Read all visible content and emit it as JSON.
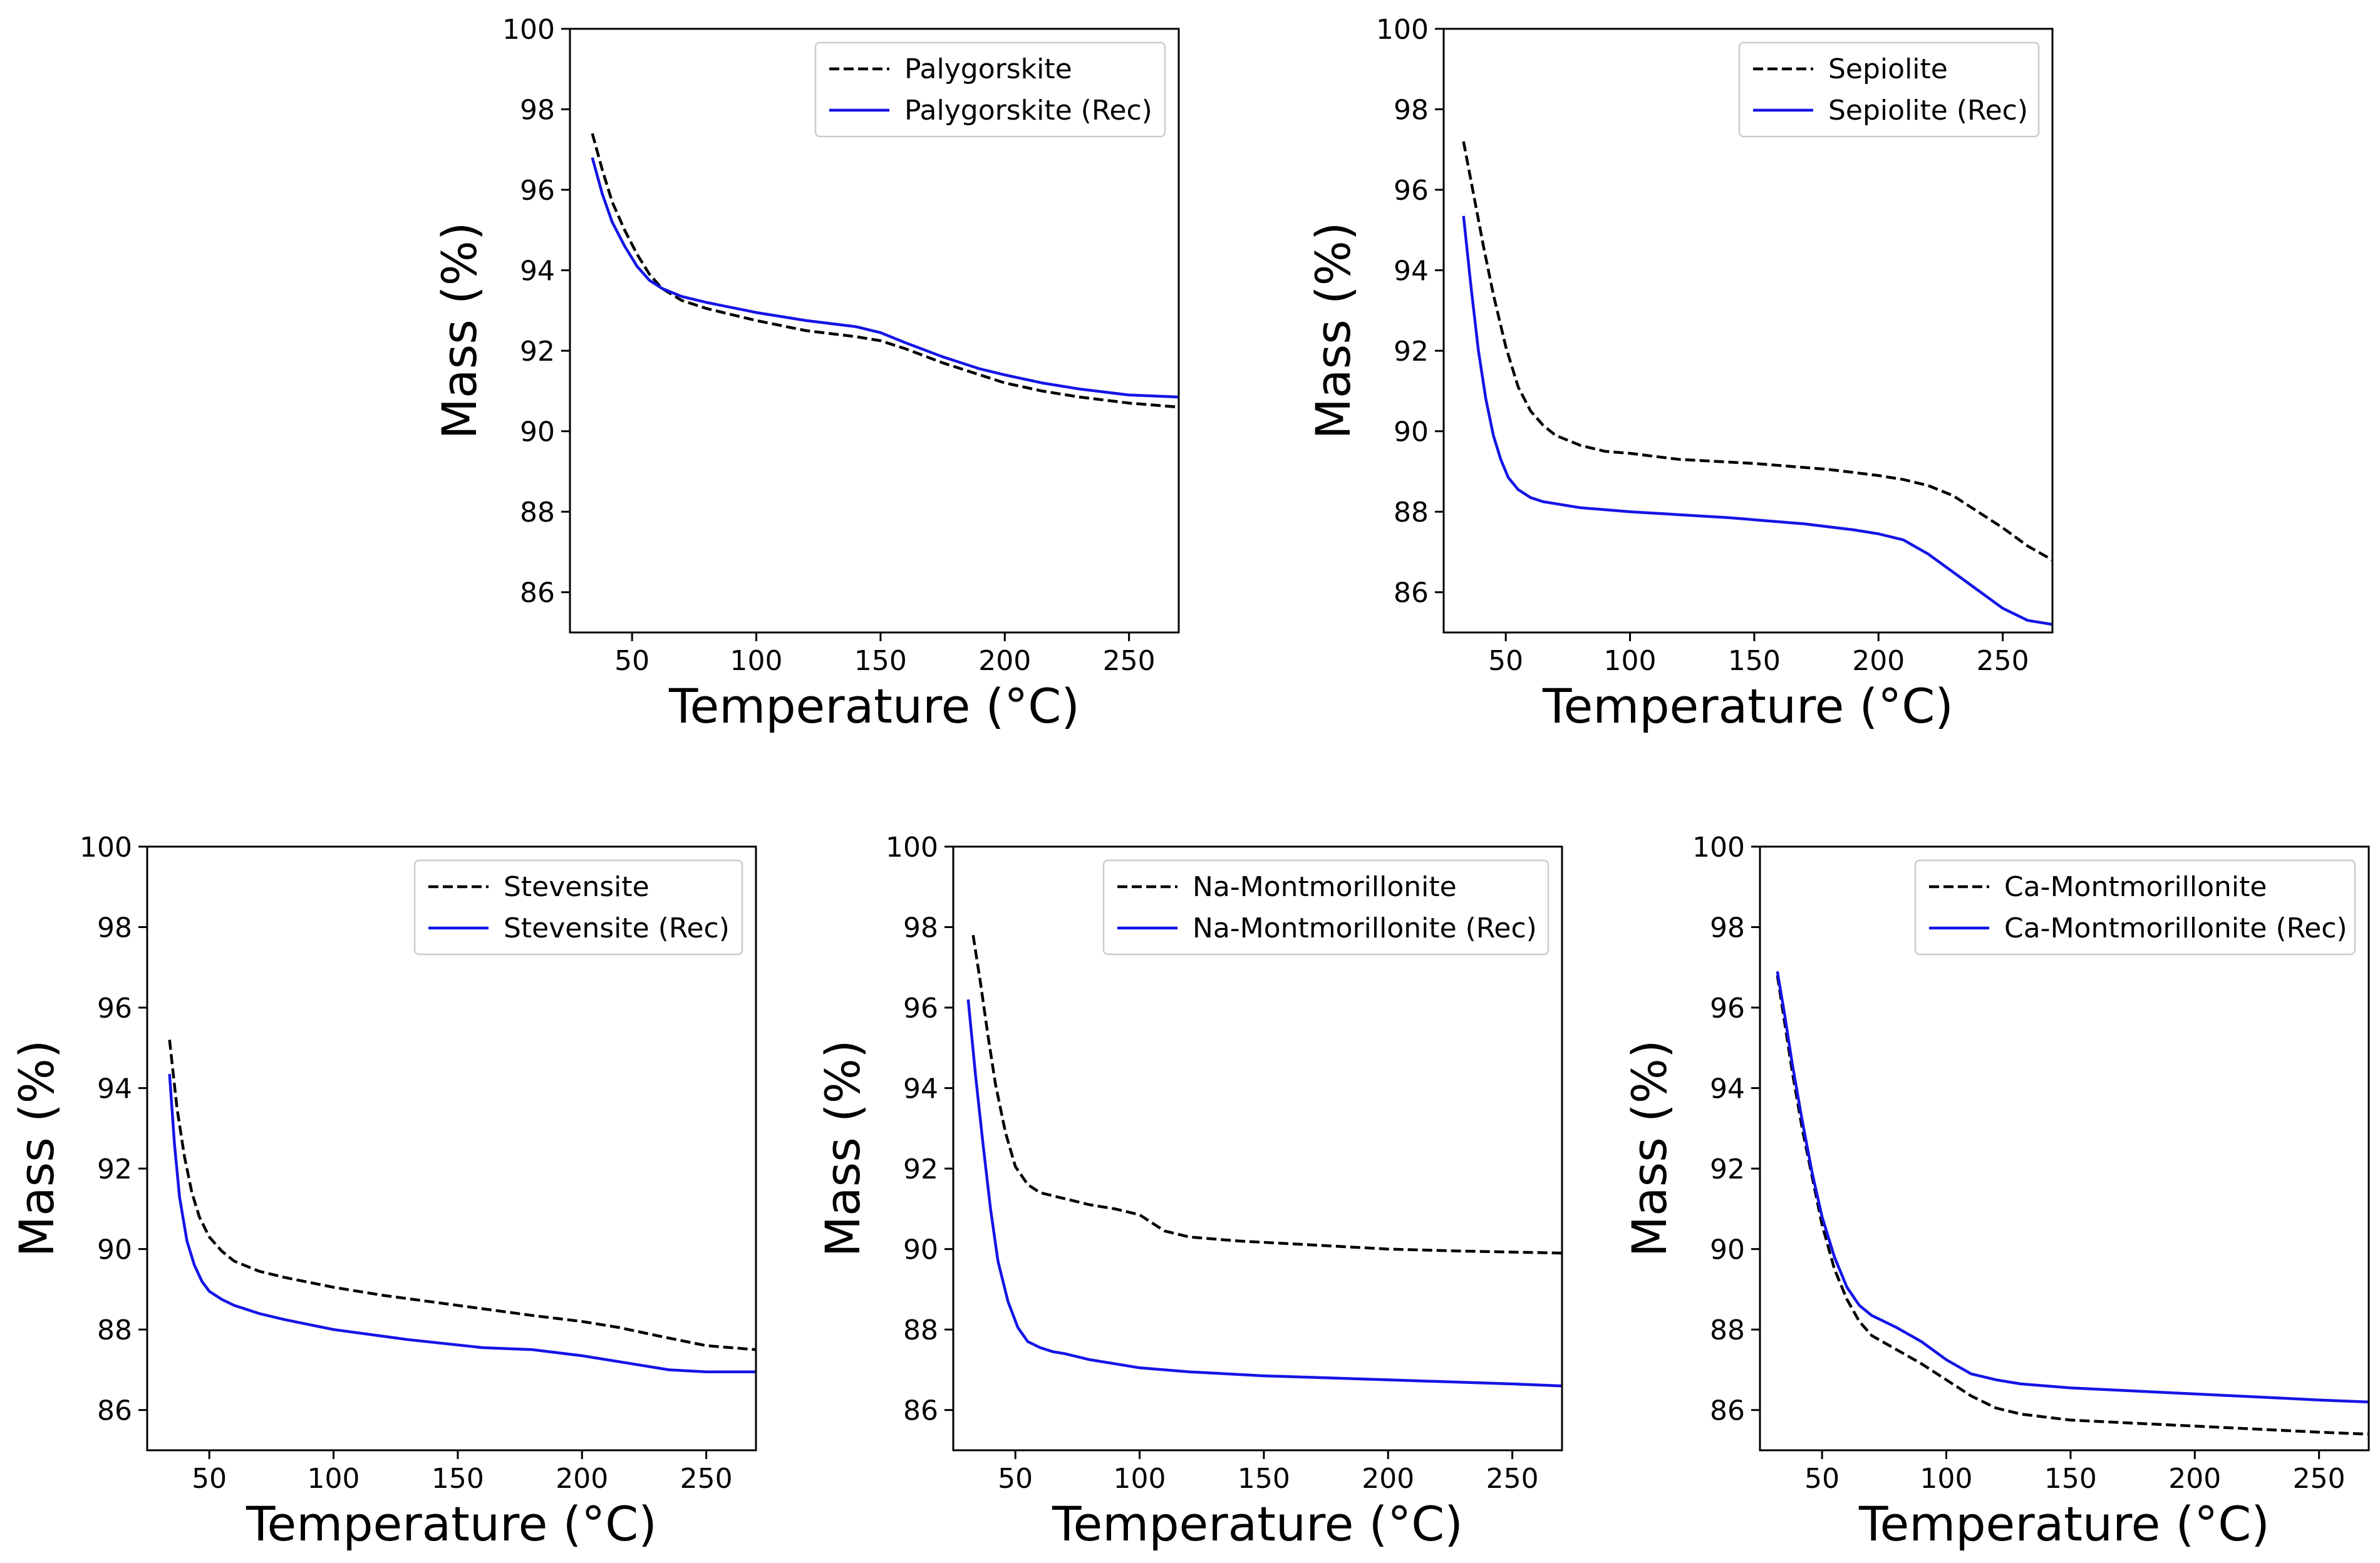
{
  "chart_data": [
    {
      "type": "line",
      "xlabel": "Temperature (°C)",
      "ylabel": "Mass (%)",
      "xlim": [
        25,
        270
      ],
      "ylim": [
        85,
        100
      ],
      "xticks": [
        50,
        100,
        150,
        200,
        250
      ],
      "yticks": [
        86,
        88,
        90,
        92,
        94,
        96,
        98,
        100
      ],
      "grid": false,
      "legend": "top-right",
      "series": [
        {
          "name": "Palygorskite",
          "style": "dashed",
          "color": "#000000",
          "x": [
            34,
            38,
            42,
            47,
            52,
            57,
            62,
            70,
            80,
            100,
            120,
            140,
            150,
            160,
            175,
            190,
            200,
            215,
            230,
            250,
            270
          ],
          "y": [
            97.4,
            96.5,
            95.7,
            95.0,
            94.4,
            93.9,
            93.55,
            93.25,
            93.05,
            92.75,
            92.5,
            92.35,
            92.25,
            92.05,
            91.7,
            91.4,
            91.2,
            91.0,
            90.85,
            90.7,
            90.6
          ]
        },
        {
          "name": "Palygorskite (Rec)",
          "style": "solid",
          "color": "#1414e6",
          "x": [
            34,
            38,
            42,
            47,
            52,
            57,
            62,
            70,
            80,
            100,
            120,
            140,
            150,
            160,
            175,
            190,
            200,
            215,
            230,
            250,
            270
          ],
          "y": [
            96.8,
            95.9,
            95.2,
            94.6,
            94.1,
            93.75,
            93.55,
            93.35,
            93.2,
            92.95,
            92.75,
            92.6,
            92.45,
            92.2,
            91.85,
            91.55,
            91.4,
            91.2,
            91.05,
            90.9,
            90.85
          ]
        }
      ]
    },
    {
      "type": "line",
      "xlabel": "Temperature (°C)",
      "ylabel": "Mass (%)",
      "xlim": [
        25,
        270
      ],
      "ylim": [
        85,
        100
      ],
      "xticks": [
        50,
        100,
        150,
        200,
        250
      ],
      "yticks": [
        86,
        88,
        90,
        92,
        94,
        96,
        98,
        100
      ],
      "grid": false,
      "legend": "top-right",
      "series": [
        {
          "name": "Sepiolite",
          "style": "dashed",
          "color": "#000000",
          "x": [
            33,
            37,
            41,
            45,
            50,
            55,
            60,
            65,
            70,
            80,
            90,
            100,
            120,
            150,
            180,
            200,
            210,
            220,
            230,
            240,
            250,
            260,
            270
          ],
          "y": [
            97.2,
            95.9,
            94.6,
            93.4,
            92.1,
            91.1,
            90.5,
            90.15,
            89.9,
            89.65,
            89.5,
            89.45,
            89.3,
            89.2,
            89.05,
            88.9,
            88.8,
            88.65,
            88.4,
            88.0,
            87.6,
            87.15,
            86.8
          ]
        },
        {
          "name": "Sepiolite (Rec)",
          "style": "solid",
          "color": "#1414e6",
          "x": [
            33,
            36,
            39,
            42,
            45,
            48,
            51,
            55,
            60,
            65,
            70,
            80,
            100,
            140,
            170,
            190,
            200,
            210,
            220,
            230,
            240,
            250,
            260,
            270
          ],
          "y": [
            95.35,
            93.6,
            92.0,
            90.8,
            89.9,
            89.3,
            88.85,
            88.55,
            88.35,
            88.25,
            88.2,
            88.1,
            88.0,
            87.85,
            87.7,
            87.55,
            87.45,
            87.3,
            86.95,
            86.5,
            86.05,
            85.6,
            85.3,
            85.2
          ]
        }
      ]
    },
    {
      "type": "line",
      "xlabel": "Temperature (°C)",
      "ylabel": "Mass (%)",
      "xlim": [
        25,
        270
      ],
      "ylim": [
        85,
        100
      ],
      "xticks": [
        50,
        100,
        150,
        200,
        250
      ],
      "yticks": [
        86,
        88,
        90,
        92,
        94,
        96,
        98,
        100
      ],
      "grid": false,
      "legend": "top-right",
      "series": [
        {
          "name": "Stevensite",
          "style": "dashed",
          "color": "#000000",
          "x": [
            34,
            37,
            40,
            43,
            46,
            50,
            55,
            60,
            70,
            80,
            100,
            120,
            150,
            180,
            200,
            215,
            230,
            250,
            270
          ],
          "y": [
            95.2,
            93.5,
            92.3,
            91.4,
            90.8,
            90.3,
            89.95,
            89.7,
            89.45,
            89.3,
            89.05,
            88.85,
            88.6,
            88.35,
            88.2,
            88.05,
            87.85,
            87.6,
            87.5
          ]
        },
        {
          "name": "Stevensite (Rec)",
          "style": "solid",
          "color": "#1414e6",
          "x": [
            34,
            36,
            38,
            41,
            44,
            47,
            50,
            55,
            60,
            70,
            80,
            100,
            130,
            160,
            180,
            200,
            220,
            235,
            250,
            270
          ],
          "y": [
            94.35,
            92.6,
            91.3,
            90.2,
            89.6,
            89.2,
            88.95,
            88.75,
            88.6,
            88.4,
            88.25,
            88.0,
            87.75,
            87.55,
            87.5,
            87.35,
            87.15,
            87.0,
            86.95,
            86.95
          ]
        }
      ]
    },
    {
      "type": "line",
      "xlabel": "Temperature (°C)",
      "ylabel": "Mass (%)",
      "xlim": [
        25,
        270
      ],
      "ylim": [
        85,
        100
      ],
      "xticks": [
        50,
        100,
        150,
        200,
        250
      ],
      "yticks": [
        86,
        88,
        90,
        92,
        94,
        96,
        98,
        100
      ],
      "grid": false,
      "legend": "top-right",
      "series": [
        {
          "name": "Na-Montmorillonite",
          "style": "dashed",
          "color": "#000000",
          "x": [
            33,
            36,
            39,
            42,
            46,
            50,
            55,
            60,
            70,
            80,
            90,
            100,
            105,
            110,
            120,
            140,
            170,
            200,
            230,
            270
          ],
          "y": [
            97.8,
            96.6,
            95.3,
            94.1,
            92.9,
            92.05,
            91.6,
            91.4,
            91.25,
            91.1,
            91.0,
            90.85,
            90.65,
            90.45,
            90.3,
            90.2,
            90.1,
            90.0,
            89.95,
            89.9
          ]
        },
        {
          "name": "Na-Montmorillonite (Rec)",
          "style": "solid",
          "color": "#1414e6",
          "x": [
            31,
            34,
            37,
            40,
            43,
            47,
            51,
            55,
            60,
            65,
            70,
            80,
            90,
            100,
            120,
            150,
            200,
            250,
            270
          ],
          "y": [
            96.2,
            94.3,
            92.6,
            91.0,
            89.7,
            88.7,
            88.05,
            87.7,
            87.55,
            87.45,
            87.4,
            87.25,
            87.15,
            87.05,
            86.95,
            86.85,
            86.75,
            86.65,
            86.6
          ]
        }
      ]
    },
    {
      "type": "line",
      "xlabel": "Temperature (°C)",
      "ylabel": "Mass (%)",
      "xlim": [
        25,
        270
      ],
      "ylim": [
        85,
        100
      ],
      "xticks": [
        50,
        100,
        150,
        200,
        250
      ],
      "yticks": [
        86,
        88,
        90,
        92,
        94,
        96,
        98,
        100
      ],
      "grid": false,
      "legend": "top-right",
      "series": [
        {
          "name": "Ca-Montmorillonite",
          "style": "dashed",
          "color": "#000000",
          "x": [
            32,
            35,
            38,
            42,
            46,
            50,
            55,
            60,
            65,
            70,
            80,
            90,
            100,
            110,
            120,
            130,
            150,
            200,
            250,
            270
          ],
          "y": [
            96.8,
            95.6,
            94.4,
            93.0,
            91.8,
            90.6,
            89.5,
            88.75,
            88.2,
            87.85,
            87.5,
            87.15,
            86.75,
            86.35,
            86.05,
            85.9,
            85.75,
            85.6,
            85.45,
            85.4
          ]
        },
        {
          "name": "Ca-Montmorillonite (Rec)",
          "style": "solid",
          "color": "#1414e6",
          "x": [
            32,
            35,
            38,
            42,
            46,
            50,
            55,
            60,
            65,
            70,
            80,
            90,
            100,
            110,
            120,
            130,
            150,
            200,
            250,
            270
          ],
          "y": [
            96.9,
            95.8,
            94.6,
            93.2,
            91.9,
            90.8,
            89.8,
            89.05,
            88.6,
            88.35,
            88.05,
            87.7,
            87.25,
            86.9,
            86.75,
            86.65,
            86.55,
            86.4,
            86.25,
            86.2
          ]
        }
      ]
    }
  ]
}
